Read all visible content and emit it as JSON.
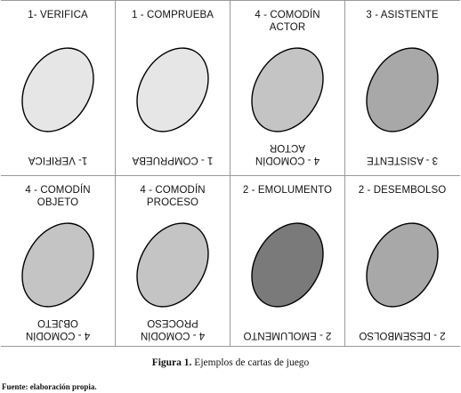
{
  "cards": [
    {
      "top": "1- VERIFICA",
      "bottom": "1- VERIFICA",
      "fill": "#e6e6e6"
    },
    {
      "top": "1 - COMPRUEBA",
      "bottom": "1 - COMPRUEBA",
      "fill": "#e6e6e6"
    },
    {
      "top": "4 - COMODÍN\nACTOR",
      "bottom": "4 - COMODÍN\nACTOR",
      "fill": "#c4c4c4"
    },
    {
      "top": "3 - ASISTENTE",
      "bottom": "3 - ASISTENTE",
      "fill": "#a8a8a8"
    },
    {
      "top": "4 - COMODÍN\nOBJETO",
      "bottom": "4 - COMODÍN\nOBJETO",
      "fill": "#c4c4c4"
    },
    {
      "top": "4 - COMODÍN\nPROCESO",
      "bottom": "4 - COMODÍN\nPROCESO",
      "fill": "#c4c4c4"
    },
    {
      "top": "2 - EMOLUMENTO",
      "bottom": "2 - EMOLUMENTO",
      "fill": "#7a7a7a"
    },
    {
      "top": "2 - DESEMBOLSO",
      "bottom": "2 - DESEMBOLSO",
      "fill": "#a8a8a8"
    }
  ],
  "caption": {
    "label": "Figura 1.",
    "text": " Ejemplos de cartas de juego"
  },
  "source": "Fuente: elaboración propia."
}
